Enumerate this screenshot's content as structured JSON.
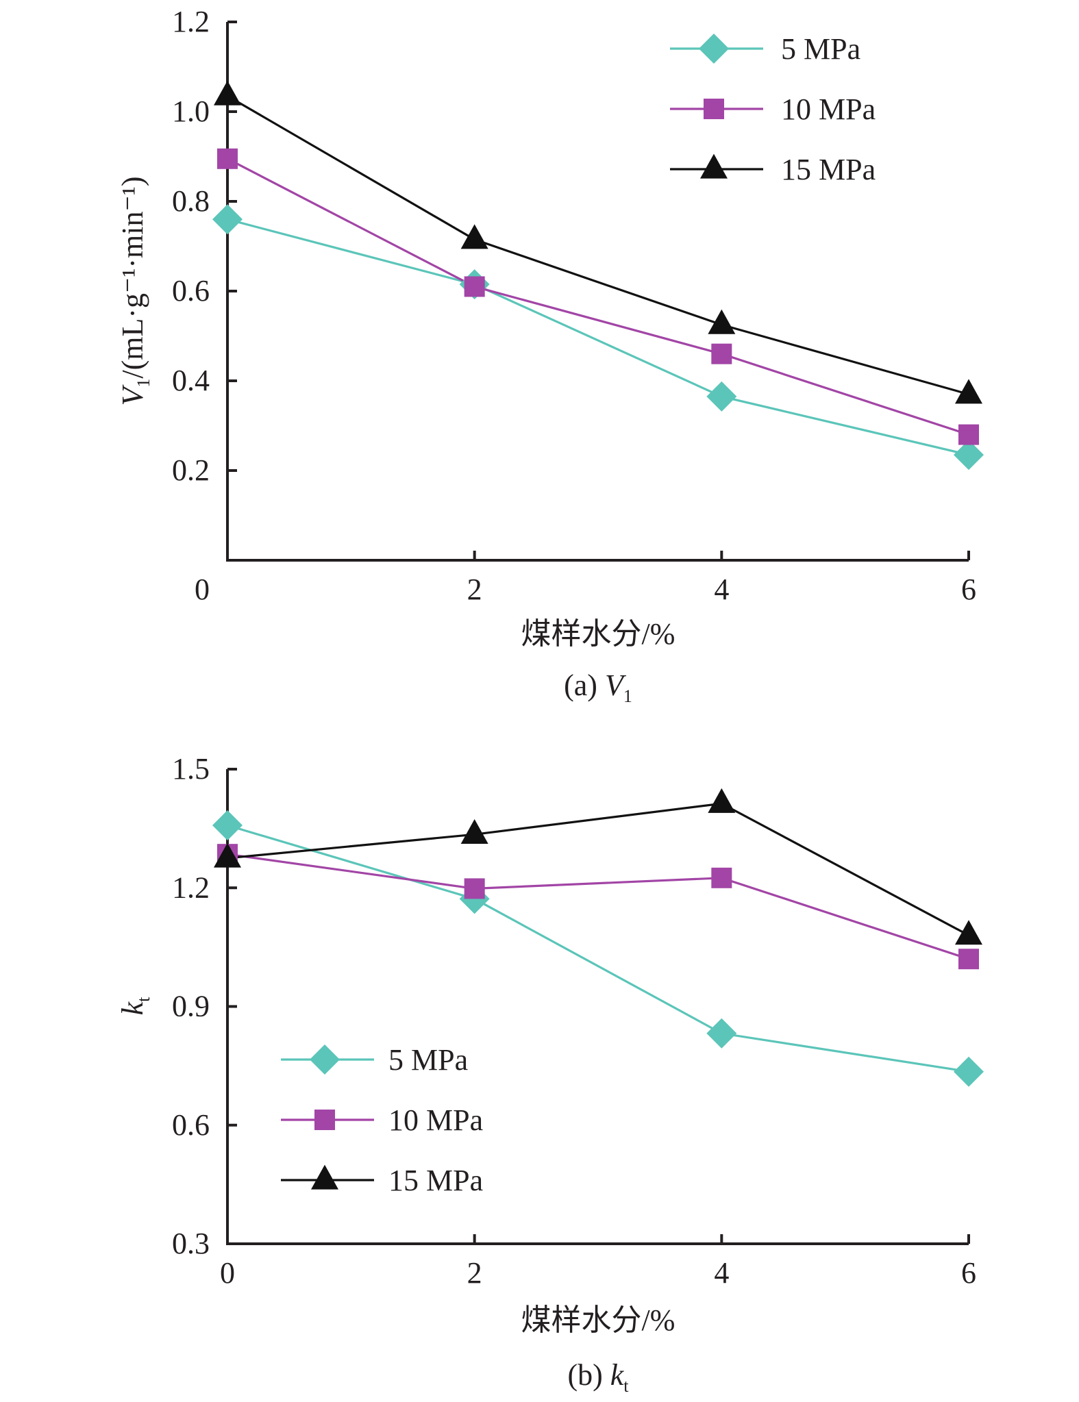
{
  "chart_data": [
    {
      "type": "line",
      "id": "a",
      "caption_prefix": "(a) ",
      "caption_var": "V",
      "caption_sub": "1",
      "xlabel": "煤样水分/%",
      "ylabel_var": "V",
      "ylabel_sub": "1",
      "ylabel_unit": "/(mL·g⁻¹·min⁻¹)",
      "x": [
        0,
        2,
        4,
        6
      ],
      "xticks": [
        "0",
        "2",
        "4",
        "6"
      ],
      "xlim": [
        0,
        6
      ],
      "ylim": [
        0,
        1.2
      ],
      "yticks": [
        "0.2",
        "0.4",
        "0.6",
        "0.8",
        "1.0",
        "1.2"
      ],
      "ytick_values": [
        0.2,
        0.4,
        0.6,
        0.8,
        1.0,
        1.2
      ],
      "grid": false,
      "legend_position": "top-right",
      "series": [
        {
          "name": "5 MPa",
          "marker": "diamond",
          "color": "#5bc5b9",
          "values": [
            0.76,
            0.615,
            0.365,
            0.235
          ]
        },
        {
          "name": "10 MPa",
          "marker": "square",
          "color": "#a245a6",
          "values": [
            0.895,
            0.61,
            0.46,
            0.28
          ]
        },
        {
          "name": "15 MPa",
          "marker": "triangle",
          "color": "#111111",
          "values": [
            1.035,
            0.715,
            0.525,
            0.37
          ]
        }
      ]
    },
    {
      "type": "line",
      "id": "b",
      "caption_prefix": "(b) ",
      "caption_var": "k",
      "caption_sub": "t",
      "xlabel": "煤样水分/%",
      "ylabel_var": "k",
      "ylabel_sub": "t",
      "ylabel_unit": "",
      "x": [
        0,
        2,
        4,
        6
      ],
      "xticks": [
        "0",
        "2",
        "4",
        "6"
      ],
      "xlim": [
        0,
        6
      ],
      "ylim": [
        0.3,
        1.5
      ],
      "yticks": [
        "0.3",
        "0.6",
        "0.9",
        "1.2",
        "1.5"
      ],
      "ytick_values": [
        0.3,
        0.6,
        0.9,
        1.2,
        1.5
      ],
      "grid": false,
      "legend_position": "bottom-left",
      "series": [
        {
          "name": "5 MPa",
          "marker": "diamond",
          "color": "#5bc5b9",
          "values": [
            1.358,
            1.172,
            0.832,
            0.735
          ]
        },
        {
          "name": "10 MPa",
          "marker": "square",
          "color": "#a245a6",
          "values": [
            1.285,
            1.198,
            1.225,
            1.02
          ]
        },
        {
          "name": "15 MPa",
          "marker": "triangle",
          "color": "#111111",
          "values": [
            1.275,
            1.335,
            1.413,
            1.08
          ]
        }
      ]
    }
  ]
}
